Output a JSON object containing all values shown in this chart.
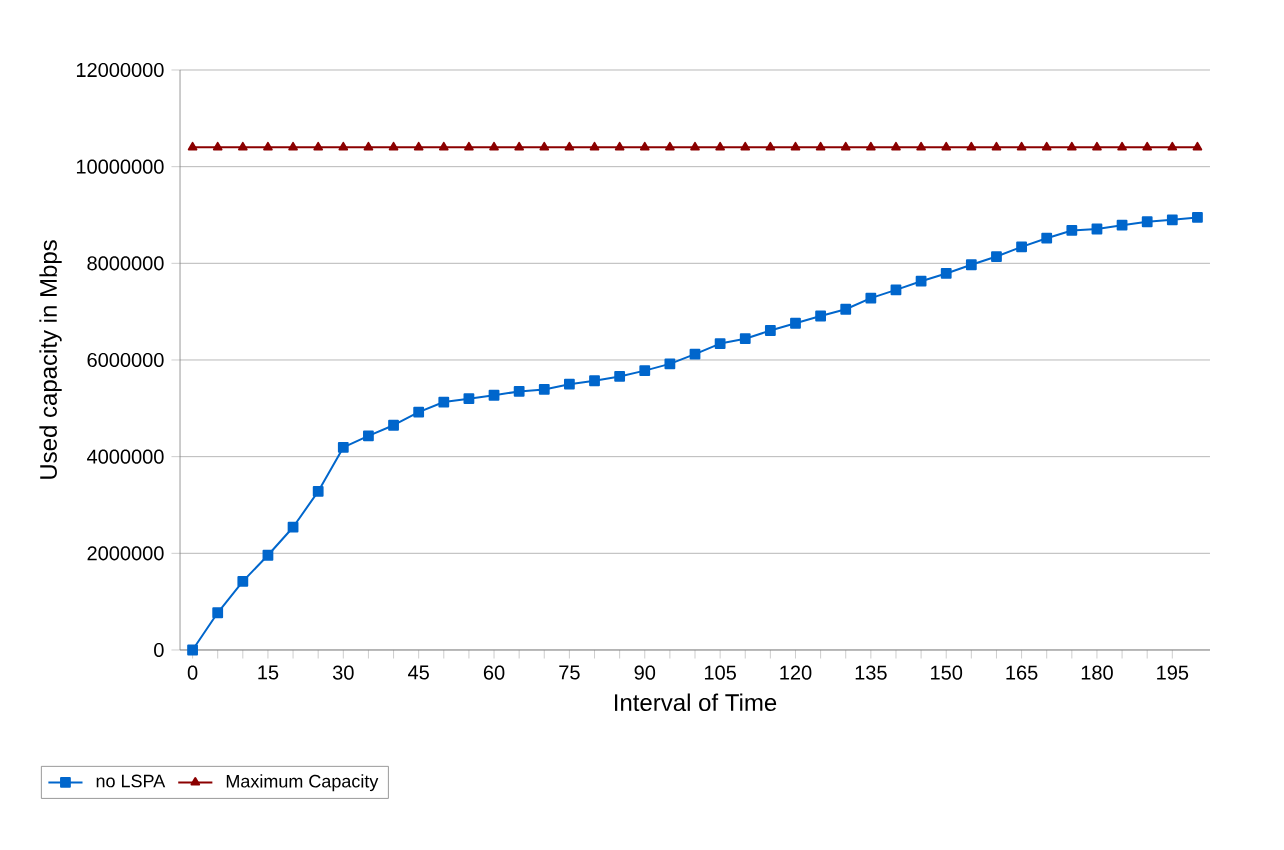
{
  "chart_data": {
    "type": "line",
    "xlabel": "Interval of Time",
    "ylabel": "Used capacity in Mbps",
    "x": [
      0,
      5,
      10,
      15,
      20,
      25,
      30,
      35,
      40,
      45,
      50,
      55,
      60,
      65,
      70,
      75,
      80,
      85,
      90,
      95,
      100,
      105,
      110,
      115,
      120,
      125,
      130,
      135,
      140,
      145,
      150,
      155,
      160,
      165,
      170,
      175,
      180,
      185,
      190,
      195,
      200
    ],
    "series": [
      {
        "name": "no LSPA",
        "color": "#0066cc",
        "marker": "square",
        "values": [
          0,
          770000,
          1420000,
          1960000,
          2540000,
          3280000,
          4190000,
          4430000,
          4650000,
          4920000,
          5130000,
          5200000,
          5270000,
          5350000,
          5390000,
          5500000,
          5570000,
          5660000,
          5780000,
          5920000,
          6120000,
          6340000,
          6440000,
          6610000,
          6760000,
          6910000,
          7050000,
          7280000,
          7450000,
          7630000,
          7790000,
          7970000,
          8140000,
          8340000,
          8520000,
          8680000,
          8710000,
          8790000,
          8860000,
          8900000,
          8950000
        ]
      },
      {
        "name": "Maximum Capacity",
        "color": "#8b0000",
        "marker": "triangle",
        "values": [
          10400000,
          10400000,
          10400000,
          10400000,
          10400000,
          10400000,
          10400000,
          10400000,
          10400000,
          10400000,
          10400000,
          10400000,
          10400000,
          10400000,
          10400000,
          10400000,
          10400000,
          10400000,
          10400000,
          10400000,
          10400000,
          10400000,
          10400000,
          10400000,
          10400000,
          10400000,
          10400000,
          10400000,
          10400000,
          10400000,
          10400000,
          10400000,
          10400000,
          10400000,
          10400000,
          10400000,
          10400000,
          10400000,
          10400000,
          10400000,
          10400000
        ]
      }
    ],
    "xlim": [
      -2.5,
      202.5
    ],
    "xticks": [
      0,
      {
        "value": 5,
        "label": null
      },
      {
        "value": 10,
        "label": null
      },
      15,
      {
        "value": 20,
        "label": null
      },
      {
        "value": 25,
        "label": null
      },
      30,
      {
        "value": 35,
        "label": null
      },
      {
        "value": 40,
        "label": null
      },
      45,
      {
        "value": 50,
        "label": null
      },
      {
        "value": 55,
        "label": null
      },
      60,
      {
        "value": 65,
        "label": null
      },
      {
        "value": 70,
        "label": null
      },
      75,
      {
        "value": 80,
        "label": null
      },
      {
        "value": 85,
        "label": null
      },
      90,
      {
        "value": 95,
        "label": null
      },
      {
        "value": 100,
        "label": null
      },
      105,
      {
        "value": 110,
        "label": null
      },
      {
        "value": 115,
        "label": null
      },
      120,
      {
        "value": 125,
        "label": null
      },
      {
        "value": 130,
        "label": null
      },
      135,
      {
        "value": 140,
        "label": null
      },
      {
        "value": 145,
        "label": null
      },
      150,
      {
        "value": 155,
        "label": null
      },
      {
        "value": 160,
        "label": null
      },
      165,
      {
        "value": 170,
        "label": null
      },
      {
        "value": 175,
        "label": null
      },
      180,
      {
        "value": 185,
        "label": null
      },
      {
        "value": 190,
        "label": null
      },
      195
    ],
    "ylim": [
      0,
      12000000
    ],
    "yticks": [
      0,
      2000000,
      4000000,
      6000000,
      8000000,
      10000000,
      12000000
    ],
    "grid": "y",
    "legend": "bottom left",
    "line_style": "solid"
  }
}
